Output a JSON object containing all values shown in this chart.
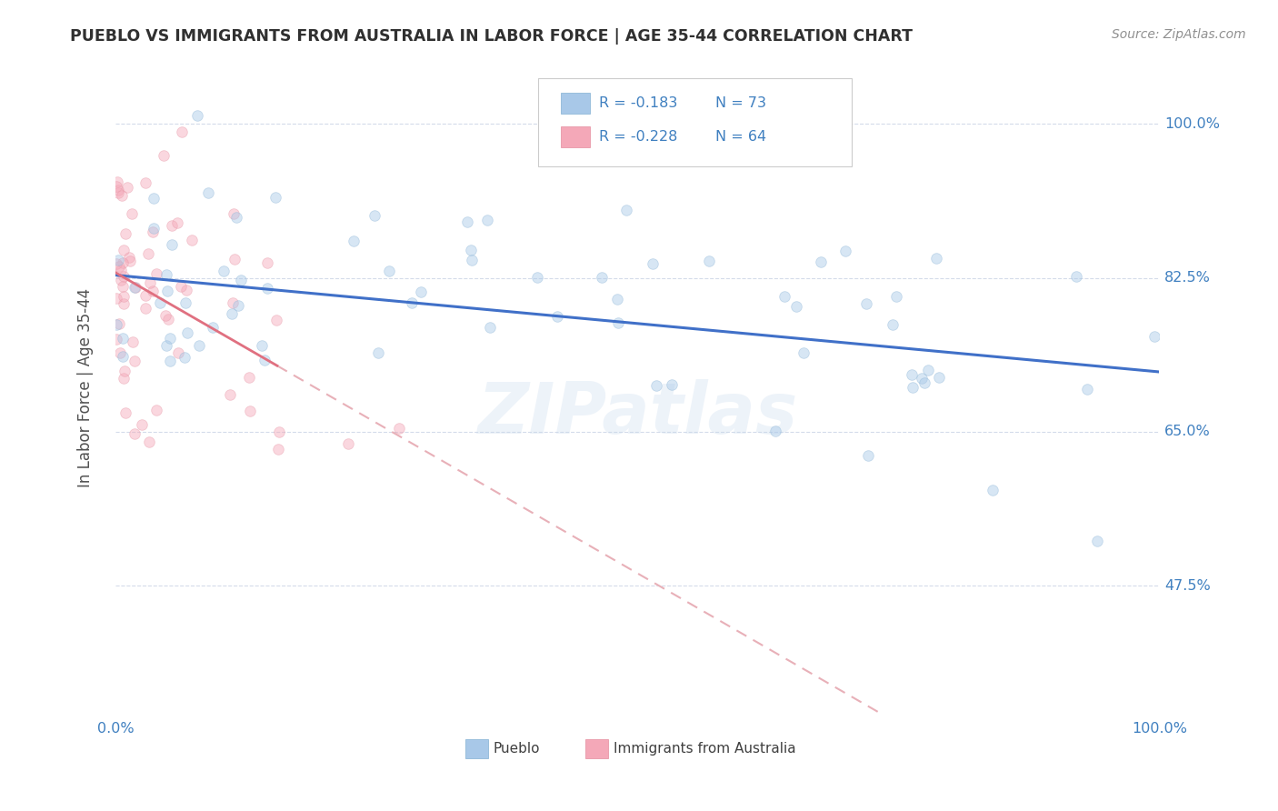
{
  "title": "PUEBLO VS IMMIGRANTS FROM AUSTRALIA IN LABOR FORCE | AGE 35-44 CORRELATION CHART",
  "source_text": "Source: ZipAtlas.com",
  "ylabel": "In Labor Force | Age 35-44",
  "x_min": 0.0,
  "x_max": 1.0,
  "y_min": 0.33,
  "y_max": 1.07,
  "y_ticks": [
    0.475,
    0.65,
    0.825,
    1.0
  ],
  "y_tick_labels": [
    "47.5%",
    "65.0%",
    "82.5%",
    "100.0%"
  ],
  "legend_entries": [
    {
      "label": "Pueblo",
      "R": -0.183,
      "N": 73
    },
    {
      "label": "Immigrants from Australia",
      "R": -0.228,
      "N": 64
    }
  ],
  "blue_trend_y_start": 0.828,
  "blue_trend_y_end": 0.718,
  "pink_trend_y_start": 0.831,
  "pink_trend_y_end_x": 0.155,
  "pink_trend_y_end": 0.725,
  "watermark_text": "ZIPatlas",
  "scatter_size": 70,
  "scatter_alpha": 0.45,
  "blue_color": "#a8c8e8",
  "pink_color": "#f4a8b8",
  "blue_edge_color": "#90b8d8",
  "pink_edge_color": "#e898a8",
  "blue_trend_color": "#4070c8",
  "pink_trend_color": "#e07080",
  "pink_dashed_color": "#e8b0b8",
  "grid_color": "#d0d8e8",
  "background_color": "#ffffff",
  "title_color": "#303030",
  "axis_label_color": "#505050",
  "tick_label_color": "#4080c0",
  "source_color": "#909090"
}
